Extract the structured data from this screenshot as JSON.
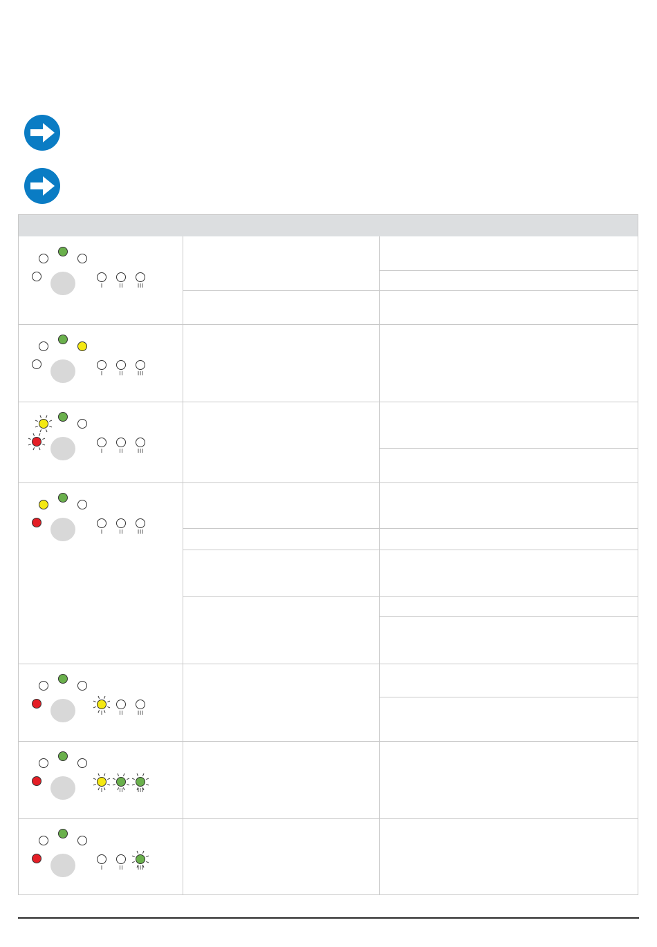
{
  "notes": [
    {
      "icon": "arrow-right-icon",
      "text": ""
    },
    {
      "icon": "arrow-right-icon",
      "text": ""
    }
  ],
  "table": {
    "headers": {
      "indicator": "",
      "cause": "",
      "action": ""
    },
    "rows": [
      {
        "panel": {
          "top_left": "off",
          "top_center": "green",
          "top_right": "off",
          "left": "off",
          "m1": "off",
          "m2": "off",
          "m3": "off"
        },
        "causes": [
          "",
          ""
        ],
        "actions": [
          "",
          "",
          ""
        ]
      },
      {
        "panel": {
          "top_left": "off",
          "top_center": "green",
          "top_right": "yellow",
          "left": "off",
          "m1": "off",
          "m2": "off",
          "m3": "off"
        },
        "causes": [
          ""
        ],
        "actions": [
          ""
        ]
      },
      {
        "panel": {
          "top_left": "yellow-blink",
          "top_center": "green",
          "top_right": "off",
          "left": "red-blink",
          "m1": "off",
          "m2": "off",
          "m3": "off"
        },
        "causes": [
          ""
        ],
        "actions": [
          "",
          ""
        ]
      },
      {
        "panel": {
          "top_left": "yellow",
          "top_center": "green",
          "top_right": "off",
          "left": "red",
          "m1": "off",
          "m2": "off",
          "m3": "off"
        },
        "causes": [
          "",
          "",
          "",
          ""
        ],
        "actions": [
          "",
          "",
          "",
          "",
          ""
        ]
      },
      {
        "panel": {
          "top_left": "off",
          "top_center": "green",
          "top_right": "off",
          "left": "red",
          "m1": "yellow-blink",
          "m2": "off",
          "m3": "off"
        },
        "causes": [
          ""
        ],
        "actions": [
          "",
          ""
        ]
      },
      {
        "panel": {
          "top_left": "off",
          "top_center": "green",
          "top_right": "off",
          "left": "red",
          "m1": "yellow-blink",
          "m2": "green-blink",
          "m3": "green-blink"
        },
        "causes": [
          ""
        ],
        "actions": [
          ""
        ]
      },
      {
        "panel": {
          "top_left": "off",
          "top_center": "green",
          "top_right": "off",
          "left": "red",
          "m1": "off",
          "m2": "off",
          "m3": "green-blink"
        },
        "causes": [
          ""
        ],
        "actions": [
          ""
        ]
      }
    ]
  },
  "footer": {
    "left": "",
    "right": ""
  },
  "colors": {
    "accent": "#0a7cc4",
    "green": "#6ab04c",
    "yellow": "#f4e813",
    "red": "#e41e26",
    "off": "#ffffff",
    "button": "#d8d8d8",
    "header": "#dcdee0"
  }
}
